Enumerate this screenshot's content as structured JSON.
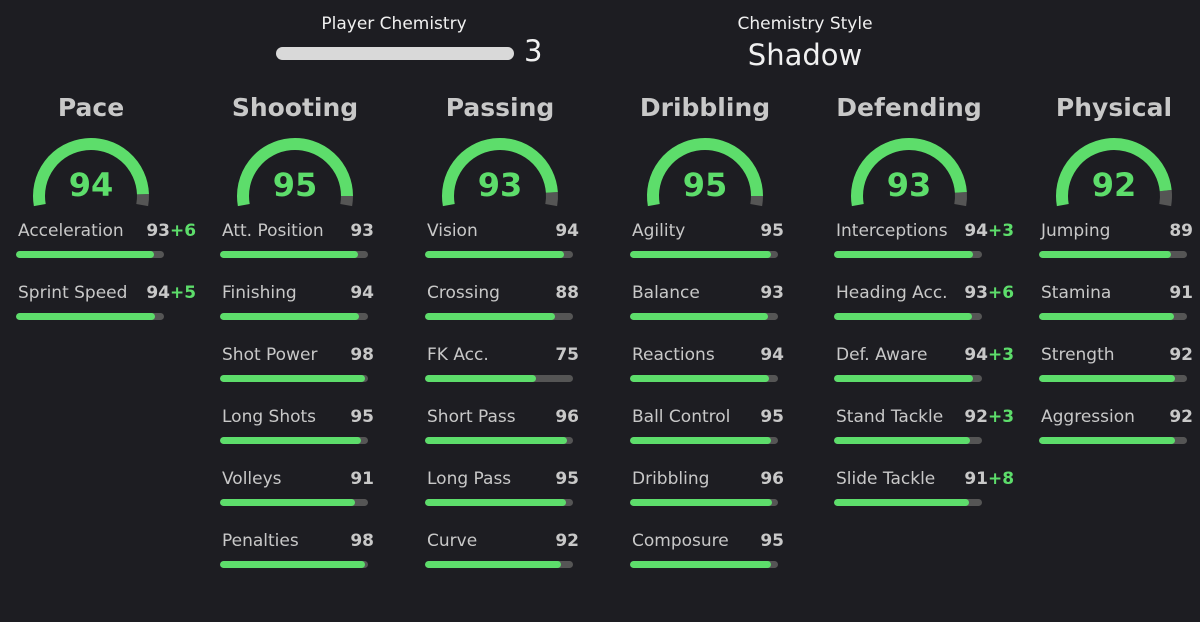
{
  "header": {
    "chemistry_label": "Player Chemistry",
    "chemistry_value": 3,
    "style_label": "Chemistry Style",
    "style_value": "Shadow"
  },
  "columns": [
    {
      "name": "Pace",
      "overall": 94,
      "stats": [
        {
          "name": "Acceleration",
          "value": 93,
          "boost": "+6"
        },
        {
          "name": "Sprint Speed",
          "value": 94,
          "boost": "+5"
        }
      ]
    },
    {
      "name": "Shooting",
      "overall": 95,
      "stats": [
        {
          "name": "Att. Position",
          "value": 93
        },
        {
          "name": "Finishing",
          "value": 94
        },
        {
          "name": "Shot Power",
          "value": 98
        },
        {
          "name": "Long Shots",
          "value": 95
        },
        {
          "name": "Volleys",
          "value": 91
        },
        {
          "name": "Penalties",
          "value": 98
        }
      ]
    },
    {
      "name": "Passing",
      "overall": 93,
      "stats": [
        {
          "name": "Vision",
          "value": 94
        },
        {
          "name": "Crossing",
          "value": 88
        },
        {
          "name": "FK Acc.",
          "value": 75
        },
        {
          "name": "Short Pass",
          "value": 96
        },
        {
          "name": "Long Pass",
          "value": 95
        },
        {
          "name": "Curve",
          "value": 92
        }
      ]
    },
    {
      "name": "Dribbling",
      "overall": 95,
      "stats": [
        {
          "name": "Agility",
          "value": 95
        },
        {
          "name": "Balance",
          "value": 93
        },
        {
          "name": "Reactions",
          "value": 94
        },
        {
          "name": "Ball Control",
          "value": 95
        },
        {
          "name": "Dribbling",
          "value": 96
        },
        {
          "name": "Composure",
          "value": 95
        }
      ]
    },
    {
      "name": "Defending",
      "overall": 93,
      "stats": [
        {
          "name": "Interceptions",
          "value": 94,
          "boost": "+3"
        },
        {
          "name": "Heading Acc.",
          "value": 93,
          "boost": "+6"
        },
        {
          "name": "Def. Aware",
          "value": 94,
          "boost": "+3"
        },
        {
          "name": "Stand Tackle",
          "value": 92,
          "boost": "+3"
        },
        {
          "name": "Slide Tackle",
          "value": 91,
          "boost": "+8"
        }
      ]
    },
    {
      "name": "Physical",
      "overall": 92,
      "stats": [
        {
          "name": "Jumping",
          "value": 89
        },
        {
          "name": "Stamina",
          "value": 91
        },
        {
          "name": "Strength",
          "value": 92
        },
        {
          "name": "Aggression",
          "value": 92
        }
      ]
    }
  ]
}
